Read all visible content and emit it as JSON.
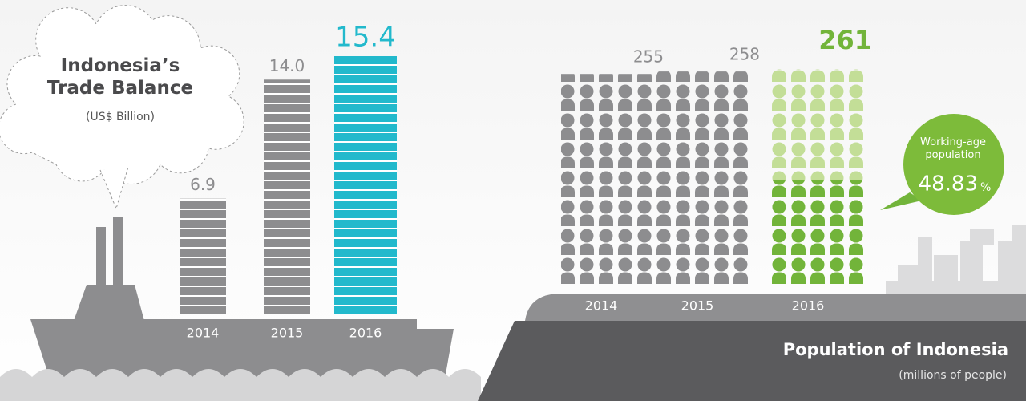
{
  "chart_data": [
    {
      "type": "bar",
      "title": "Indonesia’s Trade Balance",
      "subtitle": "(US$ Billion)",
      "categories": [
        "2014",
        "2015",
        "2016"
      ],
      "values": [
        6.9,
        14.0,
        15.4
      ],
      "value_labels": [
        "6.9",
        "14.0",
        "15.4"
      ],
      "colors": [
        "#8d8d8f",
        "#8d8d8f",
        "#22b9cc"
      ]
    },
    {
      "type": "pictogram",
      "title": "Population of Indonesia",
      "subtitle": "(millions of people)",
      "categories": [
        "2014",
        "2015",
        "2016"
      ],
      "values": [
        255,
        258,
        261
      ],
      "colors": [
        "#8d8d8f",
        "#8d8d8f",
        "#c3de97"
      ],
      "label_colors": [
        "#8d8d8f",
        "#8d8d8f",
        "#72b43a"
      ],
      "working_age": {
        "label": "Working-age population",
        "value": 48.83,
        "unit": "%",
        "color": "#72b43a"
      }
    }
  ]
}
